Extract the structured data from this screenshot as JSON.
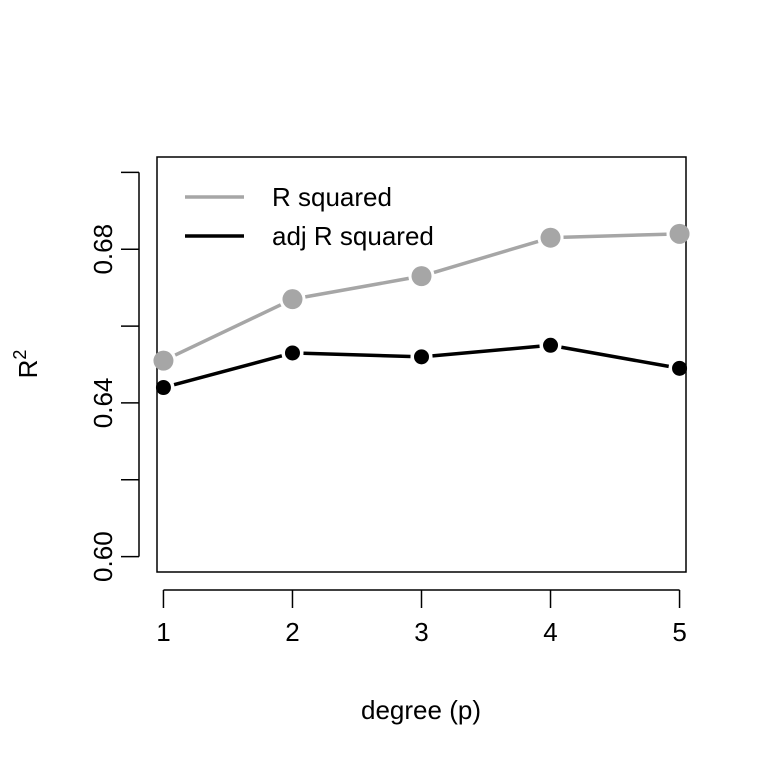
{
  "chart_data": {
    "type": "line",
    "title": "",
    "xlabel": "degree (p)",
    "ylabel": "R",
    "ylabel_superscript": "2",
    "x": [
      1,
      2,
      3,
      4,
      5
    ],
    "x_ticks": [
      "1",
      "2",
      "3",
      "4",
      "5"
    ],
    "y_ticks": [
      "0.60",
      "0.64",
      "0.68"
    ],
    "ylim": [
      0.596,
      0.704
    ],
    "xlim": [
      0.95,
      5.05
    ],
    "grid": false,
    "legend_position": "top-left",
    "series": [
      {
        "name": "R squared",
        "values": [
          0.651,
          0.667,
          0.673,
          0.683,
          0.684
        ],
        "color": "#a6a6a6"
      },
      {
        "name": "adj R squared",
        "values": [
          0.644,
          0.653,
          0.652,
          0.655,
          0.649
        ],
        "color": "#000000"
      }
    ]
  }
}
